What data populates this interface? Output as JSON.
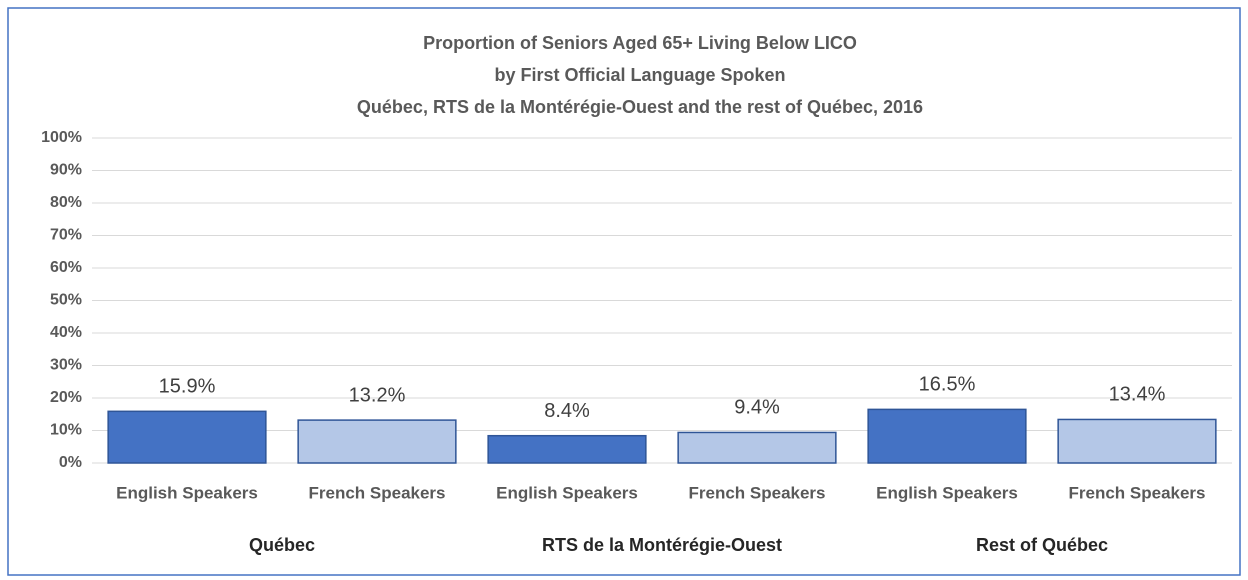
{
  "chart_data": {
    "type": "bar",
    "title": [
      "Proportion of Seniors Aged 65+ Living Below LICO",
      "by First Official Language Spoken",
      "Québec, RTS de la Montérégie-Ouest and the rest of Québec, 2016"
    ],
    "categories": [
      "English Speakers",
      "French Speakers",
      "English Speakers",
      "French Speakers",
      "English Speakers",
      "French Speakers"
    ],
    "groups": [
      "Québec",
      "RTS de la Montérégie-Ouest",
      "Rest of Québec"
    ],
    "values": [
      15.9,
      13.2,
      8.4,
      9.4,
      16.5,
      13.4
    ],
    "value_labels": [
      "15.9%",
      "13.2%",
      "8.4%",
      "9.4%",
      "16.5%",
      "13.4%"
    ],
    "colors": [
      "#4472c4",
      "#b4c7e7",
      "#4472c4",
      "#b4c7e7",
      "#4472c4",
      "#b4c7e7"
    ],
    "ylim": [
      0,
      100
    ],
    "yticks": [
      {
        "value": 0,
        "label": "0%"
      },
      {
        "value": 10,
        "label": "10%"
      },
      {
        "value": 20,
        "label": "20%"
      },
      {
        "value": 30,
        "label": "30%"
      },
      {
        "value": 40,
        "label": "40%"
      },
      {
        "value": 50,
        "label": "50%"
      },
      {
        "value": 60,
        "label": "60%"
      },
      {
        "value": 70,
        "label": "70%"
      },
      {
        "value": 80,
        "label": "80%"
      },
      {
        "value": 90,
        "label": "90%"
      },
      {
        "value": 100,
        "label": "100%"
      }
    ],
    "grid": true
  }
}
